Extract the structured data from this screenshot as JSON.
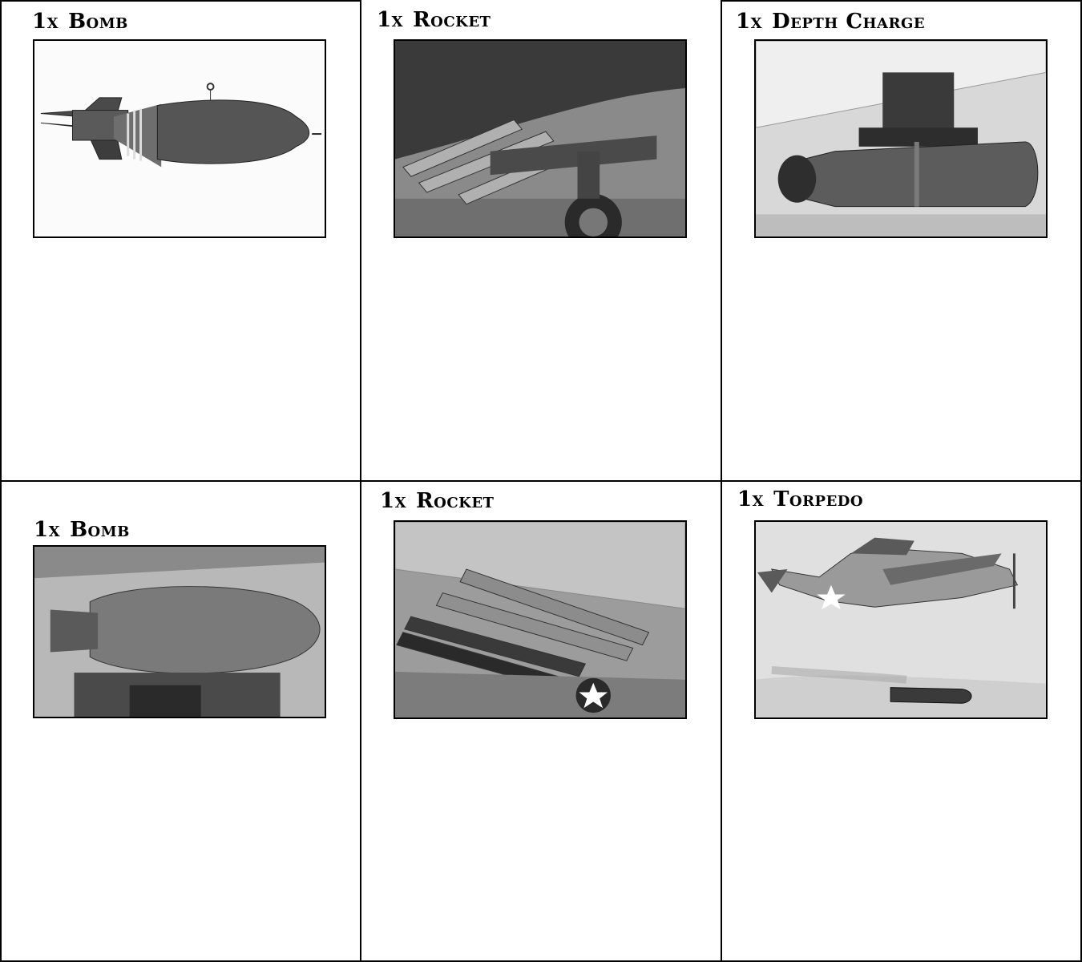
{
  "cards": [
    {
      "quantity": "1x",
      "label": "Bomb",
      "image_icon": "bomb-icon"
    },
    {
      "quantity": "1x",
      "label": "Rocket",
      "image_icon": "rocket-icon"
    },
    {
      "quantity": "1x",
      "label": "Depth Charge",
      "image_icon": "depth-charge-icon"
    },
    {
      "quantity": "1x",
      "label": "Bomb",
      "image_icon": "bomb-icon"
    },
    {
      "quantity": "1x",
      "label": "Rocket",
      "image_icon": "rocket-icon"
    },
    {
      "quantity": "1x",
      "label": "Torpedo",
      "image_icon": "torpedo-icon"
    }
  ]
}
